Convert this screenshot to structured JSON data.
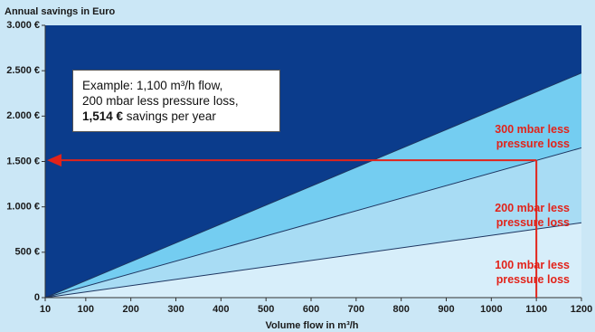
{
  "chart_data": {
    "type": "area",
    "ylabel": "Annual savings in Euro",
    "xlabel": "Volume flow in m³/h",
    "x": [
      10,
      1200
    ],
    "series": [
      {
        "name": "100 mbar less pressure loss",
        "color": "#d7eefa",
        "values": [
          0,
          825
        ]
      },
      {
        "name": "200 mbar less pressure loss",
        "color": "#a8dcf4",
        "values": [
          0,
          1650
        ]
      },
      {
        "name": "300 mbar less pressure loss",
        "color": "#74cdf1",
        "values": [
          0,
          2475
        ]
      }
    ],
    "background_color": "#0b3c8c",
    "line_color": "#1d3560",
    "xlim": [
      10,
      1200
    ],
    "xticks": [
      10,
      100,
      200,
      300,
      400,
      500,
      600,
      700,
      800,
      900,
      1000,
      1100,
      1200
    ],
    "ylim": [
      0,
      3000
    ],
    "yticks": [
      0,
      {
        "value": 500,
        "label": "500 €"
      },
      {
        "value": 1000,
        "label": "1.000 €"
      },
      {
        "value": 1500,
        "label": "1.500 €"
      },
      {
        "value": 2000,
        "label": "2.000 €"
      },
      {
        "value": 2500,
        "label": "2.500 €"
      },
      {
        "value": 3000,
        "label": "3.000 €"
      }
    ],
    "annotation": {
      "line1": "Example: 1,100 m³/h flow,",
      "line2": "200 mbar less pressure loss,",
      "highlight": "1,514 €",
      "tail": " savings per year",
      "x": 1100,
      "y": 1514,
      "color": "#e2231a"
    }
  }
}
